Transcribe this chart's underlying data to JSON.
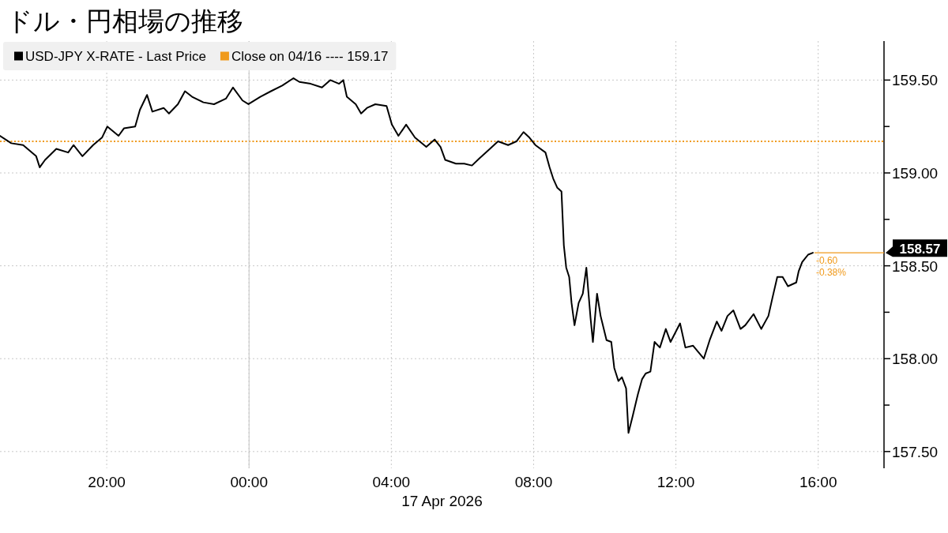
{
  "chart_data": {
    "type": "line",
    "title": "ドル・円相場の推移",
    "xlabel": "17 Apr 2026",
    "x": [
      "2026-04-16T17:00",
      "2026-04-16T17:19",
      "2026-04-16T17:39",
      "2026-04-16T18:01",
      "2026-04-16T18:07",
      "2026-04-16T18:16",
      "2026-04-16T18:35",
      "2026-04-16T18:55",
      "2026-04-16T19:04",
      "2026-04-16T19:19",
      "2026-04-16T19:37",
      "2026-04-16T19:52",
      "2026-04-16T20:01",
      "2026-04-16T20:20",
      "2026-04-16T20:29",
      "2026-04-16T20:48",
      "2026-04-16T20:56",
      "2026-04-16T21:08",
      "2026-04-16T21:17",
      "2026-04-16T21:36",
      "2026-04-16T21:45",
      "2026-04-16T22:00",
      "2026-04-16T22:12",
      "2026-04-16T22:24",
      "2026-04-16T22:43",
      "2026-04-16T23:01",
      "2026-04-16T23:21",
      "2026-04-16T23:33",
      "2026-04-16T23:49",
      "2026-04-16T23:59",
      "2026-04-17T00:19",
      "2026-04-17T00:37",
      "2026-04-17T00:56",
      "2026-04-17T01:15",
      "2026-04-17T01:25",
      "2026-04-17T01:44",
      "2026-04-17T02:03",
      "2026-04-17T02:17",
      "2026-04-17T02:32",
      "2026-04-17T02:39",
      "2026-04-17T02:45",
      "2026-04-17T03:00",
      "2026-04-17T03:09",
      "2026-04-17T03:19",
      "2026-04-17T03:33",
      "2026-04-17T03:52",
      "2026-04-17T04:01",
      "2026-04-17T04:12",
      "2026-04-17T04:25",
      "2026-04-17T04:40",
      "2026-04-17T04:59",
      "2026-04-17T05:13",
      "2026-04-17T05:23",
      "2026-04-17T05:31",
      "2026-04-17T05:49",
      "2026-04-17T06:03",
      "2026-04-17T06:16",
      "2026-04-17T06:29",
      "2026-04-17T06:43",
      "2026-04-17T07:00",
      "2026-04-17T07:17",
      "2026-04-17T07:31",
      "2026-04-17T07:43",
      "2026-04-17T07:53",
      "2026-04-17T08:03",
      "2026-04-17T08:20",
      "2026-04-17T08:27",
      "2026-04-17T08:33",
      "2026-04-17T08:40",
      "2026-04-17T08:47",
      "2026-04-17T08:51",
      "2026-04-17T08:55",
      "2026-04-17T09:00",
      "2026-04-17T09:04",
      "2026-04-17T09:09",
      "2026-04-17T09:16",
      "2026-04-17T09:23",
      "2026-04-17T09:29",
      "2026-04-17T09:36",
      "2026-04-17T09:40",
      "2026-04-17T09:47",
      "2026-04-17T09:53",
      "2026-04-17T10:03",
      "2026-04-17T10:11",
      "2026-04-17T10:16",
      "2026-04-17T10:23",
      "2026-04-17T10:29",
      "2026-04-17T10:36",
      "2026-04-17T10:40",
      "2026-04-17T10:47",
      "2026-04-17T10:56",
      "2026-04-17T11:03",
      "2026-04-17T11:09",
      "2026-04-17T11:17",
      "2026-04-17T11:24",
      "2026-04-17T11:33",
      "2026-04-17T11:43",
      "2026-04-17T11:51",
      "2026-04-17T12:07",
      "2026-04-17T12:16",
      "2026-04-17T12:29",
      "2026-04-17T12:47",
      "2026-04-17T12:57",
      "2026-04-17T13:09",
      "2026-04-17T13:17",
      "2026-04-17T13:27",
      "2026-04-17T13:37",
      "2026-04-17T13:49",
      "2026-04-17T13:57",
      "2026-04-17T14:11",
      "2026-04-17T14:24",
      "2026-04-17T14:36",
      "2026-04-17T14:43",
      "2026-04-17T14:51",
      "2026-04-17T15:00",
      "2026-04-17T15:09",
      "2026-04-17T15:23",
      "2026-04-17T15:27",
      "2026-04-17T15:33",
      "2026-04-17T15:43",
      "2026-04-17T15:51"
    ],
    "series": [
      {
        "name": "USD-JPY X-RATE - Last Price",
        "color": "#000000",
        "values": [
          159.2,
          159.16,
          159.15,
          159.09,
          159.03,
          159.07,
          159.13,
          159.11,
          159.15,
          159.09,
          159.15,
          159.19,
          159.25,
          159.2,
          159.24,
          159.25,
          159.34,
          159.42,
          159.33,
          159.35,
          159.32,
          159.37,
          159.44,
          159.41,
          159.38,
          159.37,
          159.4,
          159.46,
          159.39,
          159.37,
          159.41,
          159.44,
          159.47,
          159.51,
          159.49,
          159.48,
          159.46,
          159.5,
          159.48,
          159.5,
          159.41,
          159.37,
          159.32,
          159.35,
          159.37,
          159.36,
          159.26,
          159.2,
          159.26,
          159.19,
          159.14,
          159.18,
          159.14,
          159.07,
          159.05,
          159.05,
          159.04,
          159.08,
          159.12,
          159.17,
          159.15,
          159.17,
          159.22,
          159.19,
          159.15,
          159.11,
          159.03,
          158.97,
          158.92,
          158.9,
          158.61,
          158.49,
          158.44,
          158.3,
          158.18,
          158.3,
          158.35,
          158.49,
          158.22,
          158.09,
          158.35,
          158.23,
          158.1,
          158.09,
          157.95,
          157.88,
          157.9,
          157.84,
          157.6,
          157.69,
          157.81,
          157.89,
          157.92,
          157.93,
          158.09,
          158.06,
          158.16,
          158.09,
          158.19,
          158.06,
          158.07,
          158.0,
          158.1,
          158.2,
          158.15,
          158.23,
          158.26,
          158.16,
          158.18,
          158.24,
          158.16,
          158.23,
          158.33,
          158.44,
          158.44,
          158.39,
          158.41,
          158.47,
          158.52,
          158.56,
          158.57
        ]
      }
    ],
    "xlim": [
      "2026-04-16T17:00",
      "2026-04-17T17:51"
    ],
    "ylim": [
      157.41,
      159.71
    ],
    "xticks": [
      {
        "value": "2026-04-16T20:00",
        "label": "20:00"
      },
      {
        "value": "2026-04-17T00:00",
        "label": "00:00"
      },
      {
        "value": "2026-04-17T04:00",
        "label": "04:00"
      },
      {
        "value": "2026-04-17T08:00",
        "label": "08:00"
      },
      {
        "value": "2026-04-17T12:00",
        "label": "12:00"
      },
      {
        "value": "2026-04-17T16:00",
        "label": "16:00"
      }
    ],
    "yticks": [
      {
        "value": 157.5,
        "label": "157.50"
      },
      {
        "value": 157.75,
        "label": null
      },
      {
        "value": 158,
        "label": "158.00"
      },
      {
        "value": 158.25,
        "label": null
      },
      {
        "value": 158.5,
        "label": "158.50"
      },
      {
        "value": 158.75,
        "label": null
      },
      {
        "value": 159,
        "label": "159.00"
      },
      {
        "value": 159.25,
        "label": null
      },
      {
        "value": 159.5,
        "label": "159.50"
      }
    ],
    "grid": true,
    "legend": "top left",
    "ref_lines": [
      {
        "axis": "y",
        "value": 159.17,
        "label": "Close on 04/16 ---- 159.17",
        "color": "#f09a1c",
        "line_style": "dotted"
      },
      {
        "axis": "x",
        "value": "2026-04-17T00:00",
        "color": "#c4c4c4",
        "line_style": "solid"
      }
    ],
    "annotations": [
      {
        "text": "158.57",
        "x": "2026-04-17T15:51",
        "y": 158.57
      },
      "-0.60",
      "-0.38%"
    ]
  }
}
